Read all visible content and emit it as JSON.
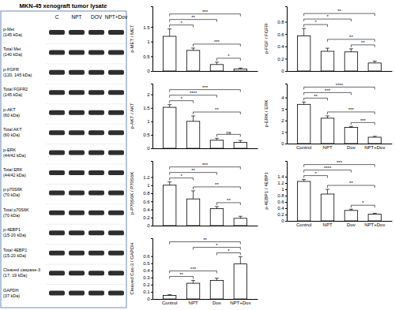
{
  "blot": {
    "title": "MKN-45 xenograft tumor lysate",
    "columns": [
      "C",
      "NPT",
      "DOV",
      "NPT+Dov"
    ],
    "rows": [
      {
        "label": "p-Met",
        "size": "(145 kDa)"
      },
      {
        "label": "Total Met",
        "size": "(140 kDa)"
      },
      {
        "label": "p-FGFR",
        "size": "(120, 145 kDa)"
      },
      {
        "label": "Total FGFR2",
        "size": "(145 kDa)"
      },
      {
        "label": "p-AKT",
        "size": "(60 kDa)"
      },
      {
        "label": "Total AKT",
        "size": "(60 kDa)"
      },
      {
        "label": "p-ERK",
        "size": "(44/42 kDa)"
      },
      {
        "label": "Total ERK",
        "size": "(44/42 kDa)"
      },
      {
        "label": "p-p70S6K",
        "size": "(70 kDa)"
      },
      {
        "label": "Total p70S6K",
        "size": "(70 kDa)"
      },
      {
        "label": "p-4EBP1",
        "size": "(15-20 kDa)"
      },
      {
        "label": "Total 4EBP1",
        "size": "(15-20 kDa)"
      },
      {
        "label": "Cleaved caspase-3",
        "size": "(17, 19 kDa)"
      },
      {
        "label": "GAPDH",
        "size": "(37 kDa)"
      }
    ]
  },
  "chart_data": [
    {
      "type": "bar",
      "y_label": "p-MET / MET",
      "categories": [
        null,
        null,
        null,
        null
      ],
      "values": [
        1.18,
        0.7,
        0.22,
        0.07
      ],
      "errors": [
        0.25,
        0.08,
        0.08,
        0.03
      ],
      "color": "#ffffff",
      "ylim": [
        0,
        2.2
      ],
      "yticks": [
        0,
        0.5,
        1,
        1.5
      ],
      "significance": [
        {
          "from": 0,
          "to": 1,
          "label": "*"
        },
        {
          "from": 0,
          "to": 2,
          "label": "**"
        },
        {
          "from": 0,
          "to": 3,
          "label": "***"
        },
        {
          "from": 1,
          "to": 3,
          "label": "***"
        },
        {
          "from": 2,
          "to": 3,
          "label": "*"
        }
      ]
    },
    {
      "type": "bar",
      "y_label": "p-FGF / FGFR",
      "categories": [
        null,
        null,
        null,
        null
      ],
      "values": [
        0.57,
        0.32,
        0.31,
        0.13
      ],
      "errors": [
        0.12,
        0.05,
        0.05,
        0.03
      ],
      "color": "#ffffff",
      "ylim": [
        0,
        1.05
      ],
      "yticks": [
        0,
        0.2,
        0.4,
        0.6,
        0.8
      ],
      "significance": [
        {
          "from": 0,
          "to": 1,
          "label": "*"
        },
        {
          "from": 0,
          "to": 2,
          "label": "*"
        },
        {
          "from": 0,
          "to": 3,
          "label": "**"
        },
        {
          "from": 1,
          "to": 3,
          "label": "**"
        },
        {
          "from": 2,
          "to": 3,
          "label": "**"
        }
      ]
    },
    {
      "type": "bar",
      "y_label": "p-AKT / AKT",
      "categories": [
        null,
        null,
        null,
        null
      ],
      "values": [
        1.52,
        1.0,
        0.3,
        0.22
      ],
      "errors": [
        0.1,
        0.2,
        0.07,
        0.07
      ],
      "color": "#ffffff",
      "ylim": [
        0,
        2.4
      ],
      "yticks": [
        0,
        0.5,
        1,
        1.5,
        2
      ],
      "significance": [
        {
          "from": 0,
          "to": 1,
          "label": "*"
        },
        {
          "from": 0,
          "to": 2,
          "label": "****"
        },
        {
          "from": 0,
          "to": 3,
          "label": "***"
        },
        {
          "from": 1,
          "to": 3,
          "label": "**"
        },
        {
          "from": 2,
          "to": 3,
          "label": "ns"
        }
      ]
    },
    {
      "type": "bar",
      "y_label": "p-ERK / ERK",
      "categories": [
        "Control",
        "NPT",
        "Dov",
        "NPT+Dov"
      ],
      "values": [
        3.4,
        2.2,
        1.4,
        0.55
      ],
      "errors": [
        0.2,
        0.2,
        0.08,
        0.08
      ],
      "color": "#ffffff",
      "ylim": [
        0,
        5.2
      ],
      "yticks": [
        0,
        1,
        2,
        3,
        4
      ],
      "significance": [
        {
          "from": 0,
          "to": 1,
          "label": "**"
        },
        {
          "from": 0,
          "to": 2,
          "label": "***"
        },
        {
          "from": 0,
          "to": 3,
          "label": "****"
        },
        {
          "from": 1,
          "to": 3,
          "label": "***"
        },
        {
          "from": 2,
          "to": 3,
          "label": "***"
        }
      ]
    },
    {
      "type": "bar",
      "y_label": "p-P70S6K / P70S6K",
      "categories": [
        null,
        null,
        null,
        null
      ],
      "values": [
        1.0,
        0.66,
        0.42,
        0.18
      ],
      "errors": [
        0.08,
        0.2,
        0.05,
        0.05
      ],
      "color": "#ffffff",
      "ylim": [
        0,
        1.6
      ],
      "yticks": [
        0,
        0.2,
        0.4,
        0.6,
        0.8,
        1,
        1.2
      ],
      "significance": [
        {
          "from": 0,
          "to": 1,
          "label": "*"
        },
        {
          "from": 0,
          "to": 2,
          "label": "**"
        },
        {
          "from": 0,
          "to": 3,
          "label": "***"
        },
        {
          "from": 1,
          "to": 3,
          "label": "**"
        },
        {
          "from": 2,
          "to": 3,
          "label": "**"
        }
      ]
    },
    {
      "type": "bar",
      "y_label": "p-4EBP1 / 4EBP1",
      "categories": [
        "Control",
        "NPT",
        "Dov",
        "NPT+Dov"
      ],
      "values": [
        1.25,
        0.85,
        0.33,
        0.21
      ],
      "errors": [
        0.06,
        0.15,
        0.04,
        0.03
      ],
      "color": "#ffffff",
      "ylim": [
        0,
        1.9
      ],
      "yticks": [
        0,
        0.2,
        0.4,
        0.6,
        0.8,
        1,
        1.2,
        1.4
      ],
      "significance": [
        {
          "from": 0,
          "to": 1,
          "label": "*"
        },
        {
          "from": 0,
          "to": 2,
          "label": "****"
        },
        {
          "from": 0,
          "to": 3,
          "label": "***"
        },
        {
          "from": 1,
          "to": 3,
          "label": "**"
        },
        {
          "from": 2,
          "to": 3,
          "label": "*"
        }
      ]
    },
    {
      "type": "bar",
      "y_label": "Cleaved Cas-3 / GAPDH",
      "categories": [
        "Control",
        "NPT",
        "Dov",
        "NPT+Dov"
      ],
      "values": [
        0.05,
        0.22,
        0.26,
        0.49
      ],
      "errors": [
        0.01,
        0.04,
        0.03,
        0.1
      ],
      "color": "#ffffff",
      "ylim": [
        0,
        0.85
      ],
      "yticks": [
        0,
        0.1,
        0.2,
        0.3,
        0.4,
        0.5,
        0.6
      ],
      "significance": [
        {
          "from": 0,
          "to": 1,
          "label": "**"
        },
        {
          "from": 0,
          "to": 2,
          "label": "***"
        },
        {
          "from": 0,
          "to": 3,
          "label": "**"
        },
        {
          "from": 1,
          "to": 3,
          "label": "*"
        },
        {
          "from": 2,
          "to": 3,
          "label": "*"
        }
      ]
    }
  ]
}
